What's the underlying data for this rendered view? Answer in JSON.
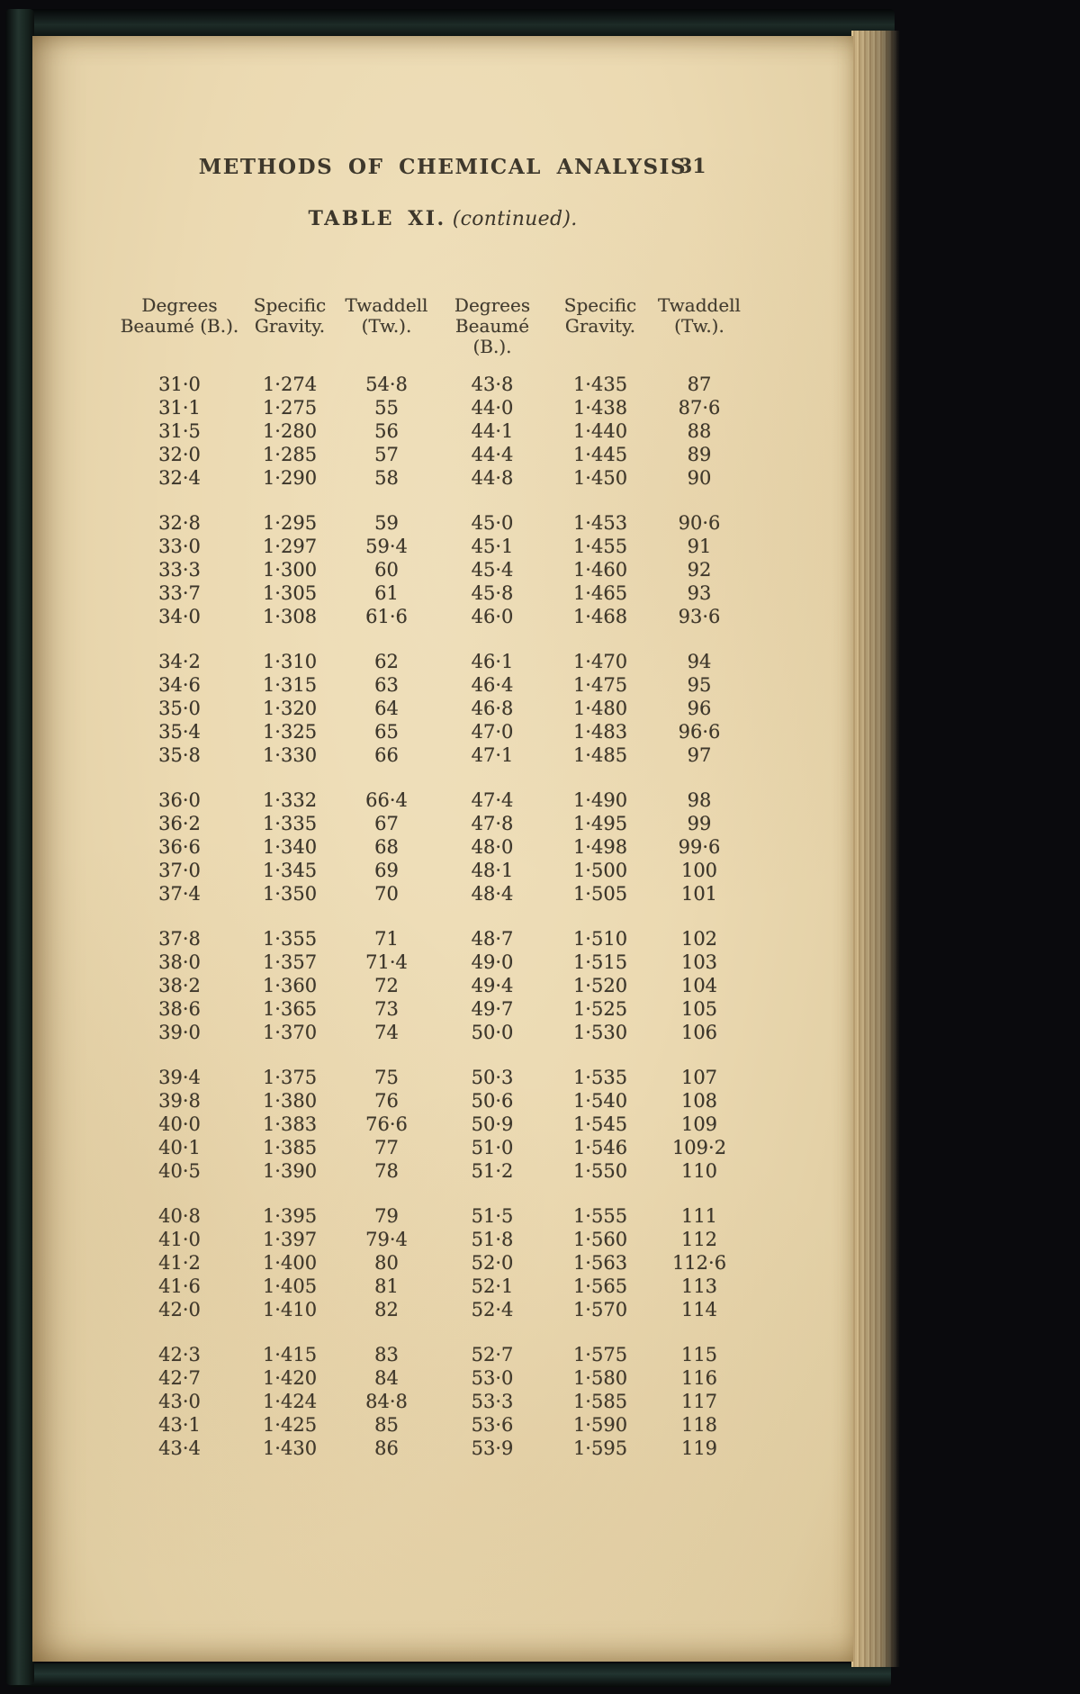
{
  "page": {
    "header_title": "METHODS OF CHEMICAL ANALYSIS",
    "page_number": "31",
    "table_title_caps": "TABLE XI.",
    "table_title_italic": "(continued)."
  },
  "table": {
    "columns": [
      {
        "line1": "Degrees",
        "line2": "Beaumé (B.)."
      },
      {
        "line1": "Specific",
        "line2": "Gravity."
      },
      {
        "line1": "Twaddell",
        "line2": "(Tw.)."
      },
      {
        "line1": "Degrees",
        "line2": "Beaumé (B.)."
      },
      {
        "line1": "Specific",
        "line2": "Gravity."
      },
      {
        "line1": "Twaddell",
        "line2": "(Tw.)."
      }
    ],
    "blocks": [
      {
        "rows": [
          [
            "31·0",
            "1·274",
            "54·8",
            "43·8",
            "1·435",
            "87"
          ],
          [
            "31·1",
            "1·275",
            "55",
            "44·0",
            "1·438",
            "87·6"
          ],
          [
            "31·5",
            "1·280",
            "56",
            "44·1",
            "1·440",
            "88"
          ],
          [
            "32·0",
            "1·285",
            "57",
            "44·4",
            "1·445",
            "89"
          ],
          [
            "32·4",
            "1·290",
            "58",
            "44·8",
            "1·450",
            "90"
          ]
        ]
      },
      {
        "rows": [
          [
            "32·8",
            "1·295",
            "59",
            "45·0",
            "1·453",
            "90·6"
          ],
          [
            "33·0",
            "1·297",
            "59·4",
            "45·1",
            "1·455",
            "91"
          ],
          [
            "33·3",
            "1·300",
            "60",
            "45·4",
            "1·460",
            "92"
          ],
          [
            "33·7",
            "1·305",
            "61",
            "45·8",
            "1·465",
            "93"
          ],
          [
            "34·0",
            "1·308",
            "61·6",
            "46·0",
            "1·468",
            "93·6"
          ]
        ]
      },
      {
        "rows": [
          [
            "34·2",
            "1·310",
            "62",
            "46·1",
            "1·470",
            "94"
          ],
          [
            "34·6",
            "1·315",
            "63",
            "46·4",
            "1·475",
            "95"
          ],
          [
            "35·0",
            "1·320",
            "64",
            "46·8",
            "1·480",
            "96"
          ],
          [
            "35·4",
            "1·325",
            "65",
            "47·0",
            "1·483",
            "96·6"
          ],
          [
            "35·8",
            "1·330",
            "66",
            "47·1",
            "1·485",
            "97"
          ]
        ]
      },
      {
        "rows": [
          [
            "36·0",
            "1·332",
            "66·4",
            "47·4",
            "1·490",
            "98"
          ],
          [
            "36·2",
            "1·335",
            "67",
            "47·8",
            "1·495",
            "99"
          ],
          [
            "36·6",
            "1·340",
            "68",
            "48·0",
            "1·498",
            "99·6"
          ],
          [
            "37·0",
            "1·345",
            "69",
            "48·1",
            "1·500",
            "100"
          ],
          [
            "37·4",
            "1·350",
            "70",
            "48·4",
            "1·505",
            "101"
          ]
        ]
      },
      {
        "rows": [
          [
            "37·8",
            "1·355",
            "71",
            "48·7",
            "1·510",
            "102"
          ],
          [
            "38·0",
            "1·357",
            "71·4",
            "49·0",
            "1·515",
            "103"
          ],
          [
            "38·2",
            "1·360",
            "72",
            "49·4",
            "1·520",
            "104"
          ],
          [
            "38·6",
            "1·365",
            "73",
            "49·7",
            "1·525",
            "105"
          ],
          [
            "39·0",
            "1·370",
            "74",
            "50·0",
            "1·530",
            "106"
          ]
        ]
      },
      {
        "rows": [
          [
            "39·4",
            "1·375",
            "75",
            "50·3",
            "1·535",
            "107"
          ],
          [
            "39·8",
            "1·380",
            "76",
            "50·6",
            "1·540",
            "108"
          ],
          [
            "40·0",
            "1·383",
            "76·6",
            "50·9",
            "1·545",
            "109"
          ],
          [
            "40·1",
            "1·385",
            "77",
            "51·0",
            "1·546",
            "109·2"
          ],
          [
            "40·5",
            "1·390",
            "78",
            "51·2",
            "1·550",
            "110"
          ]
        ]
      },
      {
        "rows": [
          [
            "40·8",
            "1·395",
            "79",
            "51·5",
            "1·555",
            "111"
          ],
          [
            "41·0",
            "1·397",
            "79·4",
            "51·8",
            "1·560",
            "112"
          ],
          [
            "41·2",
            "1·400",
            "80",
            "52·0",
            "1·563",
            "112·6"
          ],
          [
            "41·6",
            "1·405",
            "81",
            "52·1",
            "1·565",
            "113"
          ],
          [
            "42·0",
            "1·410",
            "82",
            "52·4",
            "1·570",
            "114"
          ]
        ]
      },
      {
        "rows": [
          [
            "42·3",
            "1·415",
            "83",
            "52·7",
            "1·575",
            "115"
          ],
          [
            "42·7",
            "1·420",
            "84",
            "53·0",
            "1·580",
            "116"
          ],
          [
            "43·0",
            "1·424",
            "84·8",
            "53·3",
            "1·585",
            "117"
          ],
          [
            "43·1",
            "1·425",
            "85",
            "53·6",
            "1·590",
            "118"
          ],
          [
            "43·4",
            "1·430",
            "86",
            "53·9",
            "1·595",
            "119"
          ]
        ]
      }
    ]
  }
}
